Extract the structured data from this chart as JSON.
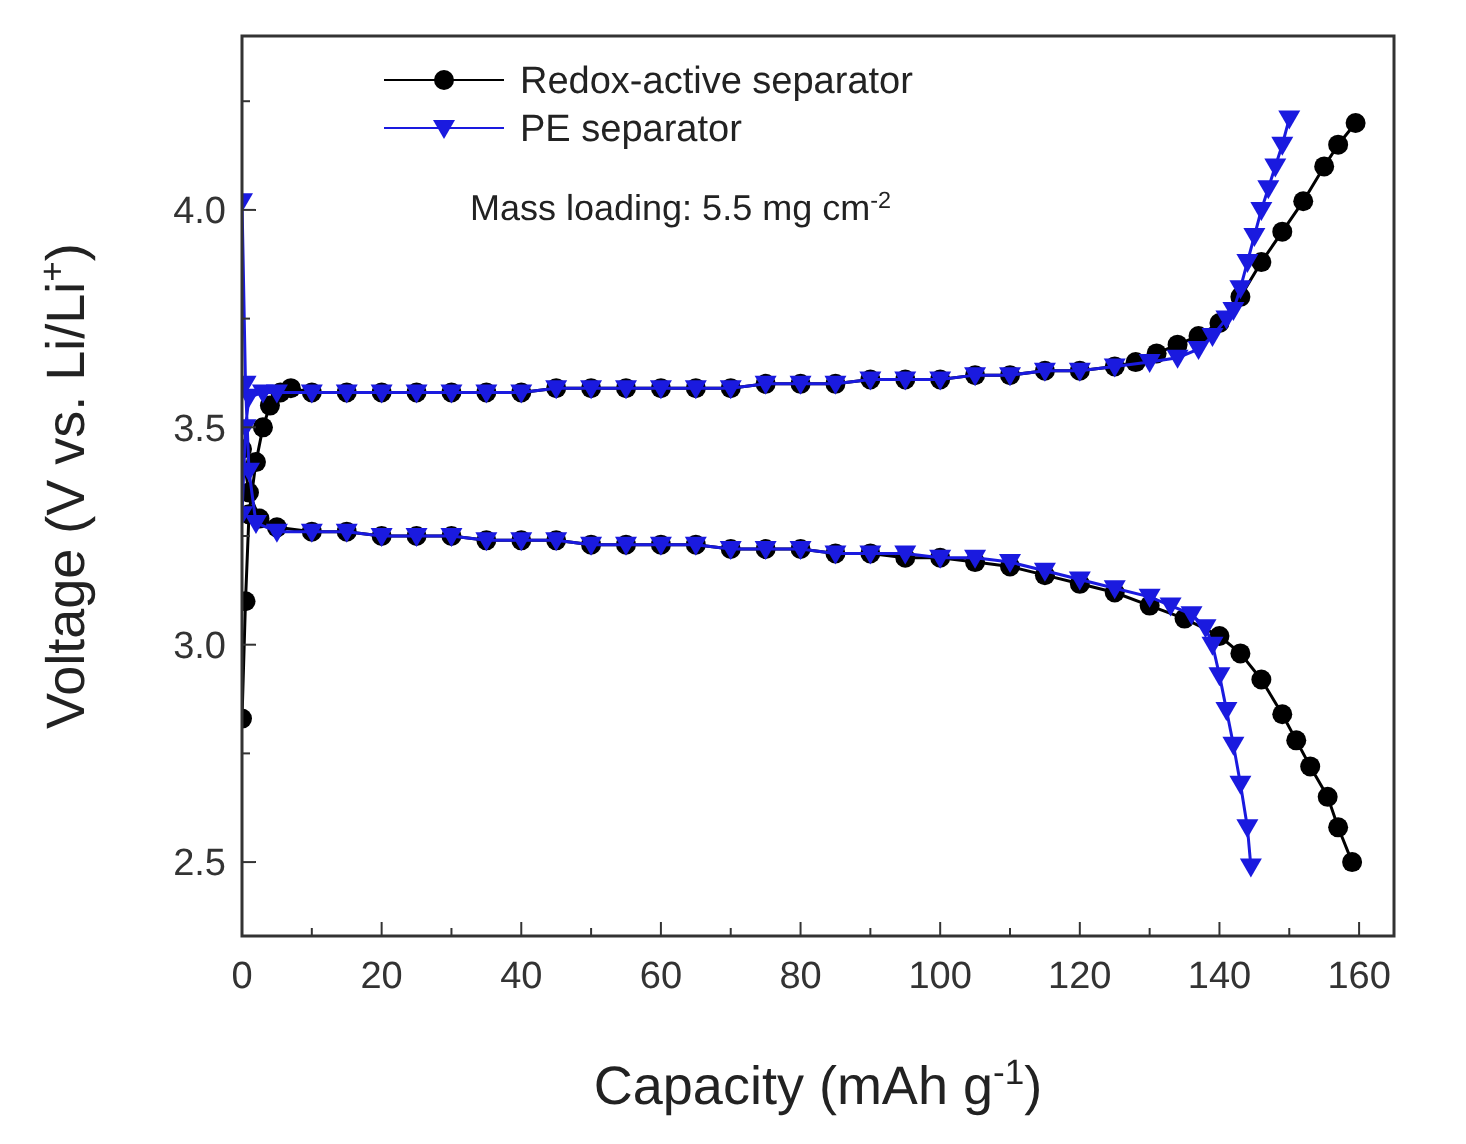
{
  "chart_data": {
    "type": "line",
    "xlabel": "Capacity (mAh g$^{-1}$)",
    "ylabel": "Voltage (V vs. Li/Li$^{+}$)",
    "annotations": [
      "Mass loading: 5.5 mg cm$^{-2}$"
    ],
    "xlim": [
      0,
      165
    ],
    "ylim": [
      2.33,
      4.4
    ],
    "xticks": [
      0,
      {
        "value": 10,
        "label": null
      },
      20,
      {
        "value": 30,
        "label": null
      },
      40,
      {
        "value": 50,
        "label": null
      },
      60,
      {
        "value": 70,
        "label": null
      },
      80,
      {
        "value": 90,
        "label": null
      },
      100,
      {
        "value": 110,
        "label": null
      },
      120,
      {
        "value": 130,
        "label": null
      },
      140,
      {
        "value": 150,
        "label": null
      },
      160
    ],
    "yticks": [
      2.5,
      {
        "value": 2.75,
        "label": null
      },
      {
        "value": 3,
        "label": "3.0"
      },
      {
        "value": 3.25,
        "label": null
      },
      3.5,
      {
        "value": 3.75,
        "label": null
      },
      {
        "value": 4,
        "label": "4.0"
      },
      {
        "value": 4.25,
        "label": null
      }
    ],
    "legend": "top left",
    "grid": false,
    "series": [
      {
        "name": "Redox-active separator",
        "color": "#000000",
        "marker": "circle",
        "x": [
          0,
          0.5,
          1,
          2,
          3,
          4,
          5.5,
          7,
          10,
          15,
          20,
          25,
          30,
          35,
          40,
          45,
          50,
          55,
          60,
          65,
          70,
          75,
          80,
          85,
          90,
          95,
          100,
          105,
          110,
          115,
          120,
          125,
          128,
          131,
          134,
          137,
          140,
          143,
          146,
          149,
          152,
          155,
          157,
          159.5,
          null,
          0,
          1,
          2.5,
          5,
          10,
          15,
          20,
          25,
          30,
          35,
          40,
          45,
          50,
          55,
          60,
          65,
          70,
          75,
          80,
          85,
          90,
          95,
          100,
          105,
          110,
          115,
          120,
          125,
          130,
          135,
          140,
          143,
          146,
          149,
          151,
          153,
          155.5,
          157,
          159
        ],
        "values": [
          2.83,
          3.1,
          3.3,
          3.42,
          3.5,
          3.55,
          3.58,
          3.59,
          3.58,
          3.58,
          3.58,
          3.58,
          3.58,
          3.58,
          3.58,
          3.59,
          3.59,
          3.59,
          3.59,
          3.59,
          3.59,
          3.6,
          3.6,
          3.6,
          3.61,
          3.61,
          3.61,
          3.62,
          3.62,
          3.63,
          3.63,
          3.64,
          3.65,
          3.67,
          3.69,
          3.71,
          3.74,
          3.8,
          3.88,
          3.95,
          4.02,
          4.1,
          4.15,
          4.2,
          null,
          3.45,
          3.35,
          3.29,
          3.27,
          3.26,
          3.26,
          3.25,
          3.25,
          3.25,
          3.24,
          3.24,
          3.24,
          3.23,
          3.23,
          3.23,
          3.23,
          3.22,
          3.22,
          3.22,
          3.21,
          3.21,
          3.2,
          3.2,
          3.19,
          3.18,
          3.16,
          3.14,
          3.12,
          3.09,
          3.06,
          3.02,
          2.98,
          2.92,
          2.84,
          2.78,
          2.72,
          2.65,
          2.58,
          2.5
        ]
      },
      {
        "name": "PE separator",
        "color": "#1a1adf",
        "marker": "triangle",
        "x": [
          0,
          0.5,
          1,
          3,
          5,
          10,
          15,
          20,
          25,
          30,
          35,
          40,
          45,
          50,
          55,
          60,
          65,
          70,
          75,
          80,
          85,
          90,
          95,
          100,
          105,
          110,
          115,
          120,
          125,
          130,
          134,
          137,
          139,
          141,
          142,
          143,
          144,
          145,
          146,
          147,
          148,
          149,
          150,
          null,
          0,
          0.5,
          1,
          2,
          5,
          10,
          15,
          20,
          25,
          30,
          35,
          40,
          45,
          50,
          55,
          60,
          65,
          70,
          75,
          80,
          85,
          90,
          95,
          100,
          105,
          110,
          115,
          120,
          125,
          130,
          133,
          136,
          138,
          139,
          140,
          141,
          142,
          143,
          144,
          144.5
        ],
        "values": [
          3.3,
          3.5,
          3.57,
          3.58,
          3.58,
          3.58,
          3.58,
          3.58,
          3.58,
          3.58,
          3.58,
          3.58,
          3.59,
          3.59,
          3.59,
          3.59,
          3.59,
          3.59,
          3.6,
          3.6,
          3.6,
          3.61,
          3.61,
          3.61,
          3.62,
          3.62,
          3.63,
          3.63,
          3.64,
          3.65,
          3.66,
          3.68,
          3.71,
          3.75,
          3.77,
          3.82,
          3.88,
          3.94,
          4.0,
          4.05,
          4.1,
          4.15,
          4.21,
          null,
          4.02,
          3.6,
          3.4,
          3.28,
          3.26,
          3.26,
          3.26,
          3.25,
          3.25,
          3.25,
          3.24,
          3.24,
          3.24,
          3.23,
          3.23,
          3.23,
          3.23,
          3.22,
          3.22,
          3.22,
          3.21,
          3.21,
          3.21,
          3.2,
          3.2,
          3.19,
          3.17,
          3.15,
          3.13,
          3.11,
          3.09,
          3.07,
          3.04,
          3.0,
          2.93,
          2.85,
          2.77,
          2.68,
          2.58,
          2.49
        ]
      }
    ]
  }
}
